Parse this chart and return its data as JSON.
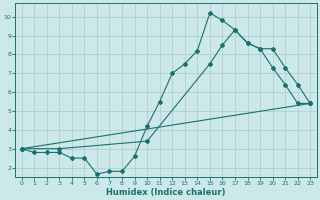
{
  "xlabel": "Humidex (Indice chaleur)",
  "xlim": [
    -0.5,
    23.5
  ],
  "ylim": [
    1.5,
    10.7
  ],
  "xticks": [
    0,
    1,
    2,
    3,
    4,
    5,
    6,
    7,
    8,
    9,
    10,
    11,
    12,
    13,
    14,
    15,
    16,
    17,
    18,
    19,
    20,
    21,
    22,
    23
  ],
  "yticks": [
    2,
    3,
    4,
    5,
    6,
    7,
    8,
    9,
    10
  ],
  "bg_color": "#cde8e8",
  "line_color": "#1a7070",
  "grid_color": "#b0d0d0",
  "line1_x": [
    0,
    1,
    2,
    3,
    4,
    5,
    6,
    7,
    8,
    9,
    10,
    11,
    12,
    13,
    14,
    15,
    16,
    17,
    18,
    19,
    20,
    21,
    22,
    23
  ],
  "line1_y": [
    3.0,
    2.8,
    2.8,
    2.8,
    2.5,
    2.5,
    1.65,
    1.8,
    1.8,
    2.6,
    4.2,
    5.5,
    7.0,
    7.5,
    8.2,
    10.2,
    9.8,
    9.3,
    8.6,
    8.3,
    7.3,
    6.4,
    5.4,
    5.4
  ],
  "line2_x": [
    0,
    3,
    10,
    15,
    16,
    17,
    18,
    19,
    20,
    21,
    22,
    23
  ],
  "line2_y": [
    3.0,
    3.0,
    3.4,
    7.5,
    8.5,
    9.3,
    8.6,
    8.3,
    8.3,
    7.3,
    6.4,
    5.4
  ],
  "line3_x": [
    0,
    23
  ],
  "line3_y": [
    3.0,
    5.4
  ]
}
